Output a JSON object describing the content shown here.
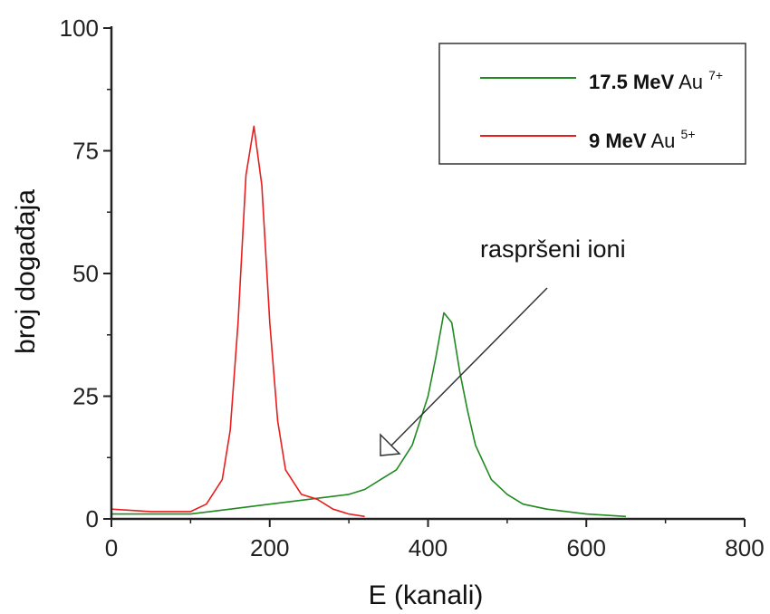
{
  "chart_data": {
    "type": "line",
    "xlabel": "E (kanali)",
    "ylabel": "broj događaja",
    "xlim": [
      0,
      800
    ],
    "ylim": [
      0,
      100
    ],
    "x_ticks": [
      "0",
      "200",
      "400",
      "600",
      "800"
    ],
    "y_ticks": [
      "0",
      "25",
      "50",
      "75",
      "100"
    ],
    "grid": false,
    "legend_position": "top-right",
    "colors": {
      "green": "#1f8a1f",
      "red": "#e81e1e"
    },
    "series": [
      {
        "name": "17.5 MeV Au7+",
        "legend_bold": "17.5 MeV",
        "legend_ion": "Au",
        "legend_charge": "7+",
        "color": "green",
        "x": [
          0,
          50,
          100,
          150,
          200,
          250,
          300,
          320,
          340,
          360,
          380,
          400,
          410,
          420,
          430,
          440,
          450,
          460,
          480,
          500,
          520,
          550,
          600,
          650
        ],
        "y": [
          1,
          1,
          1,
          2,
          3,
          4,
          5,
          6,
          8,
          10,
          15,
          25,
          33,
          42,
          40,
          30,
          22,
          15,
          8,
          5,
          3,
          2,
          1,
          0.5
        ]
      },
      {
        "name": "9 MeV Au5+",
        "legend_bold": "9 MeV",
        "legend_ion": "Au",
        "legend_charge": "5+",
        "color": "red",
        "x": [
          0,
          50,
          100,
          120,
          140,
          150,
          160,
          170,
          180,
          190,
          200,
          210,
          220,
          240,
          260,
          280,
          300,
          320
        ],
        "y": [
          2,
          1.5,
          1.5,
          3,
          8,
          18,
          40,
          70,
          80,
          68,
          40,
          20,
          10,
          5,
          4,
          2,
          1,
          0.5
        ]
      }
    ],
    "annotation": {
      "text": "raspršeni ioni",
      "x": 345,
      "y": 12
    }
  }
}
